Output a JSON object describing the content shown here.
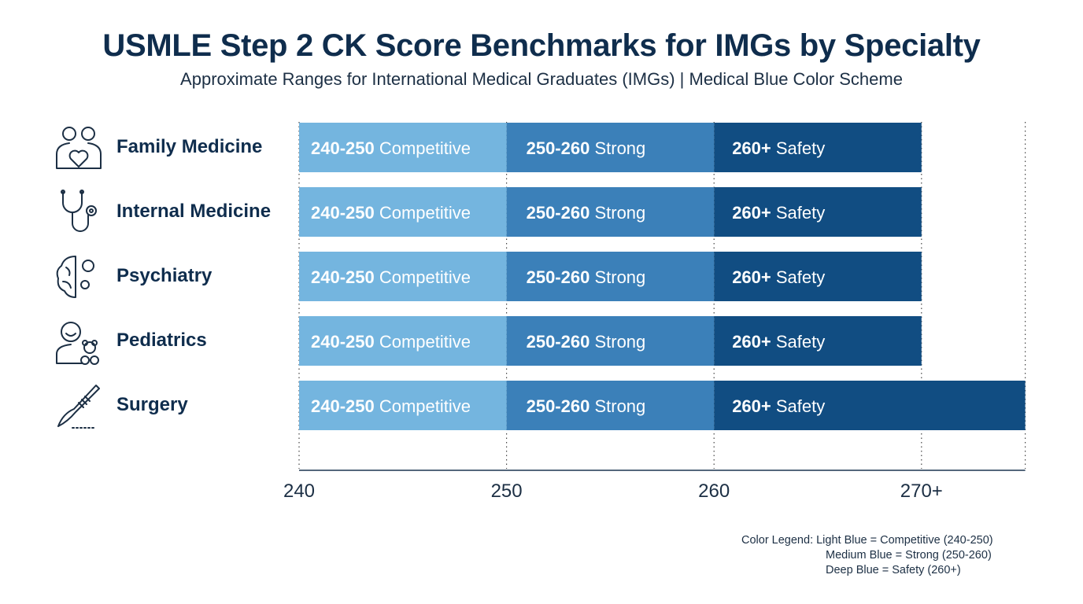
{
  "title": "USMLE Step 2 CK Score Benchmarks for IMGs by Specialty",
  "subtitle": "Approximate Ranges for International Medical Graduates (IMGs) | Medical Blue Color Scheme",
  "colors": {
    "competitive": "#74b5df",
    "strong": "#3b80b9",
    "safety": "#114d82",
    "text_dark": "#0f2d4d"
  },
  "chart_data": {
    "type": "bar",
    "orientation": "horizontal",
    "stacked": true,
    "categories": [
      "Family Medicine",
      "Internal Medicine",
      "Psychiatry",
      "Pediatrics",
      "Surgery"
    ],
    "category_icons": [
      "doctors-heart-icon",
      "stethoscope-icon",
      "brain-gears-icon",
      "child-teddy-bear-icon",
      "scalpel-icon"
    ],
    "series": [
      {
        "name": "Competitive",
        "range_label": "240-250",
        "ranges": [
          [
            240,
            250
          ],
          [
            240,
            250
          ],
          [
            240,
            250
          ],
          [
            240,
            250
          ],
          [
            240,
            250
          ]
        ]
      },
      {
        "name": "Strong",
        "range_label": "250-260",
        "ranges": [
          [
            250,
            260
          ],
          [
            250,
            260
          ],
          [
            250,
            260
          ],
          [
            250,
            260
          ],
          [
            250,
            260
          ]
        ]
      },
      {
        "name": "Safety",
        "range_label": "260+",
        "ranges": [
          [
            260,
            270
          ],
          [
            260,
            270
          ],
          [
            260,
            270
          ],
          [
            260,
            270
          ],
          [
            260,
            275
          ]
        ]
      }
    ],
    "xlim": [
      240,
      275
    ],
    "x_ticks": [
      240,
      250,
      260,
      270
    ],
    "x_tick_labels": [
      "240",
      "250",
      "260",
      "270+"
    ],
    "grid": "dotted vertical",
    "legend_placement": "bottom-right"
  },
  "legend": {
    "line1": "Color Legend: Light Blue = Competitive (240-250)",
    "line2": "Medium Blue = Strong (250-260)",
    "line3": "Deep Blue = Safety (260+)"
  }
}
